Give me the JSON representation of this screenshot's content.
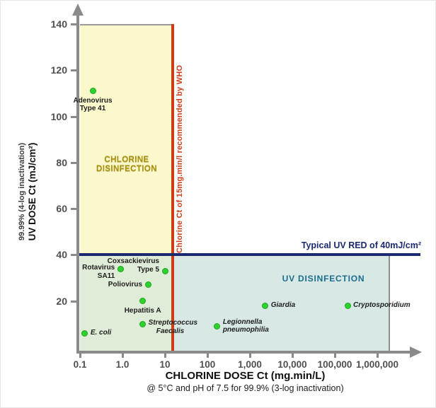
{
  "chart_data": {
    "type": "scatter",
    "x_scale": "log",
    "xlim": [
      0.1,
      1000000
    ],
    "ylim": [
      0,
      140
    ],
    "grid": false,
    "x_axis_title": "CHLORINE DOSE Ct (mg.min/L)",
    "x_axis_subtitle": "@ 5°C and pH of 7.5 for 99.9% (3-log inactivation)",
    "y_axis_title_line1": "99.99% (4-log inactivation)",
    "y_axis_title_line2": "UV DOSE Ct (mJ/cm²)",
    "x_ticks": [
      {
        "v": 0.1,
        "label": "0.1"
      },
      {
        "v": 1,
        "label": "1.0"
      },
      {
        "v": 10,
        "label": "10"
      },
      {
        "v": 100,
        "label": "100"
      },
      {
        "v": 1000,
        "label": "1,000"
      },
      {
        "v": 10000,
        "label": "10,000"
      },
      {
        "v": 100000,
        "label": "100,000"
      },
      {
        "v": 1000000,
        "label": "1,000,000"
      }
    ],
    "y_ticks": [
      20,
      40,
      60,
      80,
      100,
      120,
      140
    ],
    "marker": {
      "shape": "circle",
      "fill": "#2fd02f",
      "stroke": "#1aa81a"
    },
    "axis_color": "#8a8a8a",
    "tick_label_color": "#4f4f4f",
    "regions": [
      {
        "name": "chlorine-disinfection",
        "label": "CHLORINE\nDISINFECTION",
        "x": [
          0.1,
          15
        ],
        "y": [
          40,
          140
        ],
        "fill": "#fbf8cc",
        "label_color": "#a8900a"
      },
      {
        "name": "chlorine-uv-overlap",
        "label": "",
        "x": [
          0.1,
          15
        ],
        "y": [
          0,
          40
        ],
        "fill": "#dfecd7"
      },
      {
        "name": "uv-disinfection",
        "label": "UV DISINFECTION",
        "x": [
          15,
          2000000
        ],
        "y": [
          0,
          40
        ],
        "fill": "#d7e8e5",
        "label_color": "#1a6d8d"
      }
    ],
    "reference_lines": [
      {
        "name": "who-chlorine-ct",
        "orientation": "vertical",
        "value": 15,
        "label": "Chlorine Ct of 15mg.min/l recommended by WHO",
        "color": "#cf3a17"
      },
      {
        "name": "typical-uv-red",
        "orientation": "horizontal",
        "value": 40,
        "label": "Typical UV RED of 40mJ/cm²",
        "color": "#1b2a70"
      }
    ],
    "points": [
      {
        "name": "Adenovirus Type 41",
        "x": 0.2,
        "y": 111,
        "label": "Adenovirus\nType 41",
        "label_pos": "below",
        "italic": false
      },
      {
        "name": "Rotavirus SA11",
        "x": 0.9,
        "y": 34,
        "label": "Rotavirus\nSA11",
        "label_pos": "left",
        "label_align": "first",
        "italic": false
      },
      {
        "name": "Coxsackievirus Type 5",
        "x": 10,
        "y": 33,
        "label": "Coxsackievirus\nType 5",
        "label_pos": "left",
        "label_align": "last",
        "italic": false
      },
      {
        "name": "Poliovirus",
        "x": 4,
        "y": 27,
        "label": "Poliovirus",
        "label_pos": "left",
        "italic": false
      },
      {
        "name": "Hepatitis A",
        "x": 3,
        "y": 20,
        "label": "Hepatitis A",
        "label_pos": "below",
        "italic": false
      },
      {
        "name": "Streptococcus Faecalis",
        "x": 3,
        "y": 10,
        "label": "Streptococcus\n    Faecalis",
        "label_pos": "right",
        "label_align": "first",
        "italic": true
      },
      {
        "name": "E. coli",
        "x": 0.13,
        "y": 6,
        "label": "E. coli",
        "label_pos": "right",
        "italic": true
      },
      {
        "name": "Legionnella pneumophilia",
        "x": 170,
        "y": 9,
        "label": "Legionnella\npneumophilia",
        "label_pos": "right",
        "label_align": "middle",
        "italic": true
      },
      {
        "name": "Giardia",
        "x": 2300,
        "y": 18,
        "label": "Giardia",
        "label_pos": "right",
        "italic": true
      },
      {
        "name": "Cryptosporidium",
        "x": 200000,
        "y": 18,
        "label": "Cryptosporidium",
        "label_pos": "right",
        "italic": true
      }
    ]
  }
}
